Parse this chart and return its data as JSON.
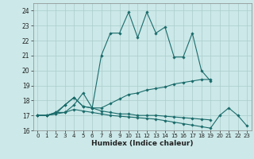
{
  "xlabel": "Humidex (Indice chaleur)",
  "line1_x": [
    0,
    1,
    2,
    3,
    4,
    5,
    6,
    7,
    8,
    9,
    10,
    11,
    12,
    13,
    14,
    15,
    16,
    17,
    18,
    19
  ],
  "line1_y": [
    17,
    17,
    17.2,
    17.2,
    17.7,
    18.5,
    17.5,
    21.0,
    22.5,
    22.5,
    23.9,
    22.2,
    23.9,
    22.5,
    22.9,
    20.9,
    20.9,
    22.5,
    20.0,
    19.3
  ],
  "line2_x": [
    0,
    1,
    2,
    3,
    4,
    5,
    6,
    7,
    8,
    9,
    10,
    11,
    12,
    13,
    14,
    15,
    16,
    17,
    18,
    19
  ],
  "line2_y": [
    17,
    17,
    17.2,
    17.7,
    18.2,
    17.6,
    17.5,
    17.5,
    17.8,
    18.1,
    18.4,
    18.5,
    18.7,
    18.8,
    18.9,
    19.1,
    19.2,
    19.3,
    19.4,
    19.4
  ],
  "line3_x": [
    0,
    1,
    2,
    3,
    4,
    5,
    6,
    7,
    8,
    9,
    10,
    11,
    12,
    13,
    14,
    15,
    16,
    17,
    18,
    19,
    20,
    21,
    22,
    23
  ],
  "line3_y": [
    17,
    17,
    17.1,
    17.2,
    17.4,
    17.3,
    17.2,
    17.1,
    17.0,
    16.95,
    16.9,
    16.85,
    16.8,
    16.75,
    16.65,
    16.55,
    16.45,
    16.35,
    16.25,
    16.15,
    17.0,
    17.5,
    17.0,
    16.3
  ],
  "line4_x": [
    0,
    1,
    2,
    3,
    4,
    5,
    6,
    7,
    8,
    9,
    10,
    11,
    12,
    13,
    14,
    15,
    16,
    17,
    18,
    19
  ],
  "line4_y": [
    17,
    17,
    17.1,
    17.7,
    18.2,
    17.6,
    17.5,
    17.3,
    17.2,
    17.1,
    17.1,
    17.0,
    17.0,
    17.0,
    16.95,
    16.9,
    16.85,
    16.8,
    16.75,
    16.7
  ],
  "bg_color": "#cce8e8",
  "grid_color": "#aacccc",
  "line_color": "#1a6b6b",
  "xlim": [
    -0.5,
    23.5
  ],
  "ylim": [
    16,
    24.5
  ],
  "yticks": [
    16,
    17,
    18,
    19,
    20,
    21,
    22,
    23,
    24
  ],
  "xticks": [
    0,
    1,
    2,
    3,
    4,
    5,
    6,
    7,
    8,
    9,
    10,
    11,
    12,
    13,
    14,
    15,
    16,
    17,
    18,
    19,
    20,
    21,
    22,
    23
  ]
}
